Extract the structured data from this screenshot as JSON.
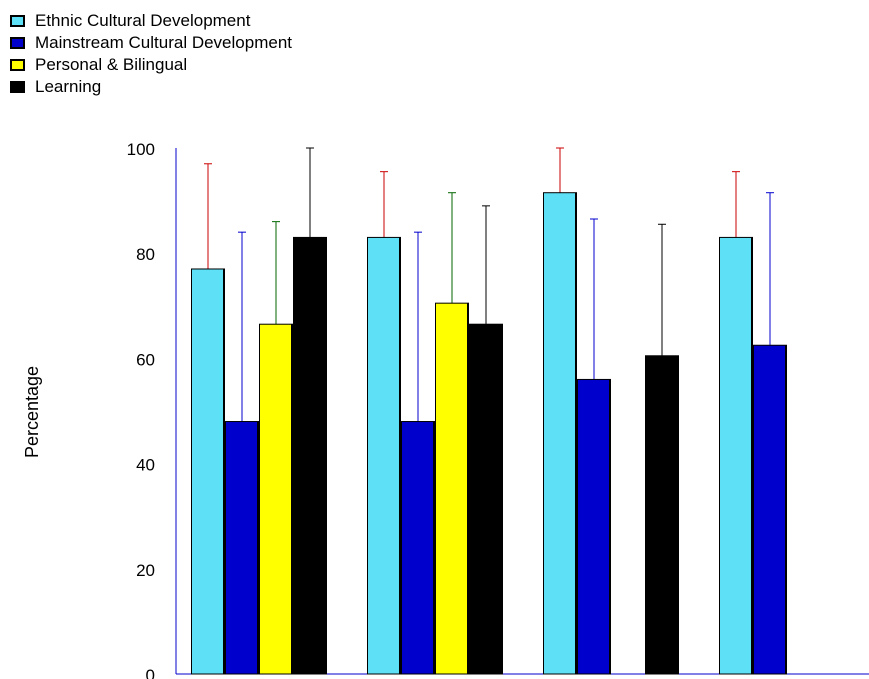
{
  "chart_data": {
    "type": "bar",
    "title": "",
    "xlabel": "",
    "ylabel": "Percentage",
    "ylim": [
      0,
      100
    ],
    "yticks": [
      0,
      20,
      40,
      60,
      80,
      100
    ],
    "grid": false,
    "legend_position": "top-left",
    "groups": 4,
    "series": [
      {
        "name": "Ethnic Cultural Development",
        "color": "#5ee0f6",
        "values": [
          77,
          83,
          91.5,
          83
        ],
        "error_upper": [
          97,
          95.5,
          100,
          95.5
        ],
        "error_color": "#cc0000"
      },
      {
        "name": "Mainstream Cultural Development",
        "color": "#0000cc",
        "values": [
          48,
          48,
          56,
          62.5
        ],
        "error_upper": [
          84,
          84,
          86.5,
          91.5
        ],
        "error_color": "#0000cc"
      },
      {
        "name": "Personal & Bilingual",
        "color": "#ffff00",
        "values": [
          66.5,
          70.5,
          null,
          null
        ],
        "error_upper": [
          86,
          91.5,
          null,
          null
        ],
        "error_lower": [
          63,
          67,
          null,
          null
        ],
        "error_color": "#006600"
      },
      {
        "name": "Learning",
        "color": "#000000",
        "values": [
          83,
          66.5,
          60.5,
          null
        ],
        "error_upper": [
          100,
          89,
          85.5,
          null
        ],
        "error_color": "#000000"
      }
    ]
  }
}
